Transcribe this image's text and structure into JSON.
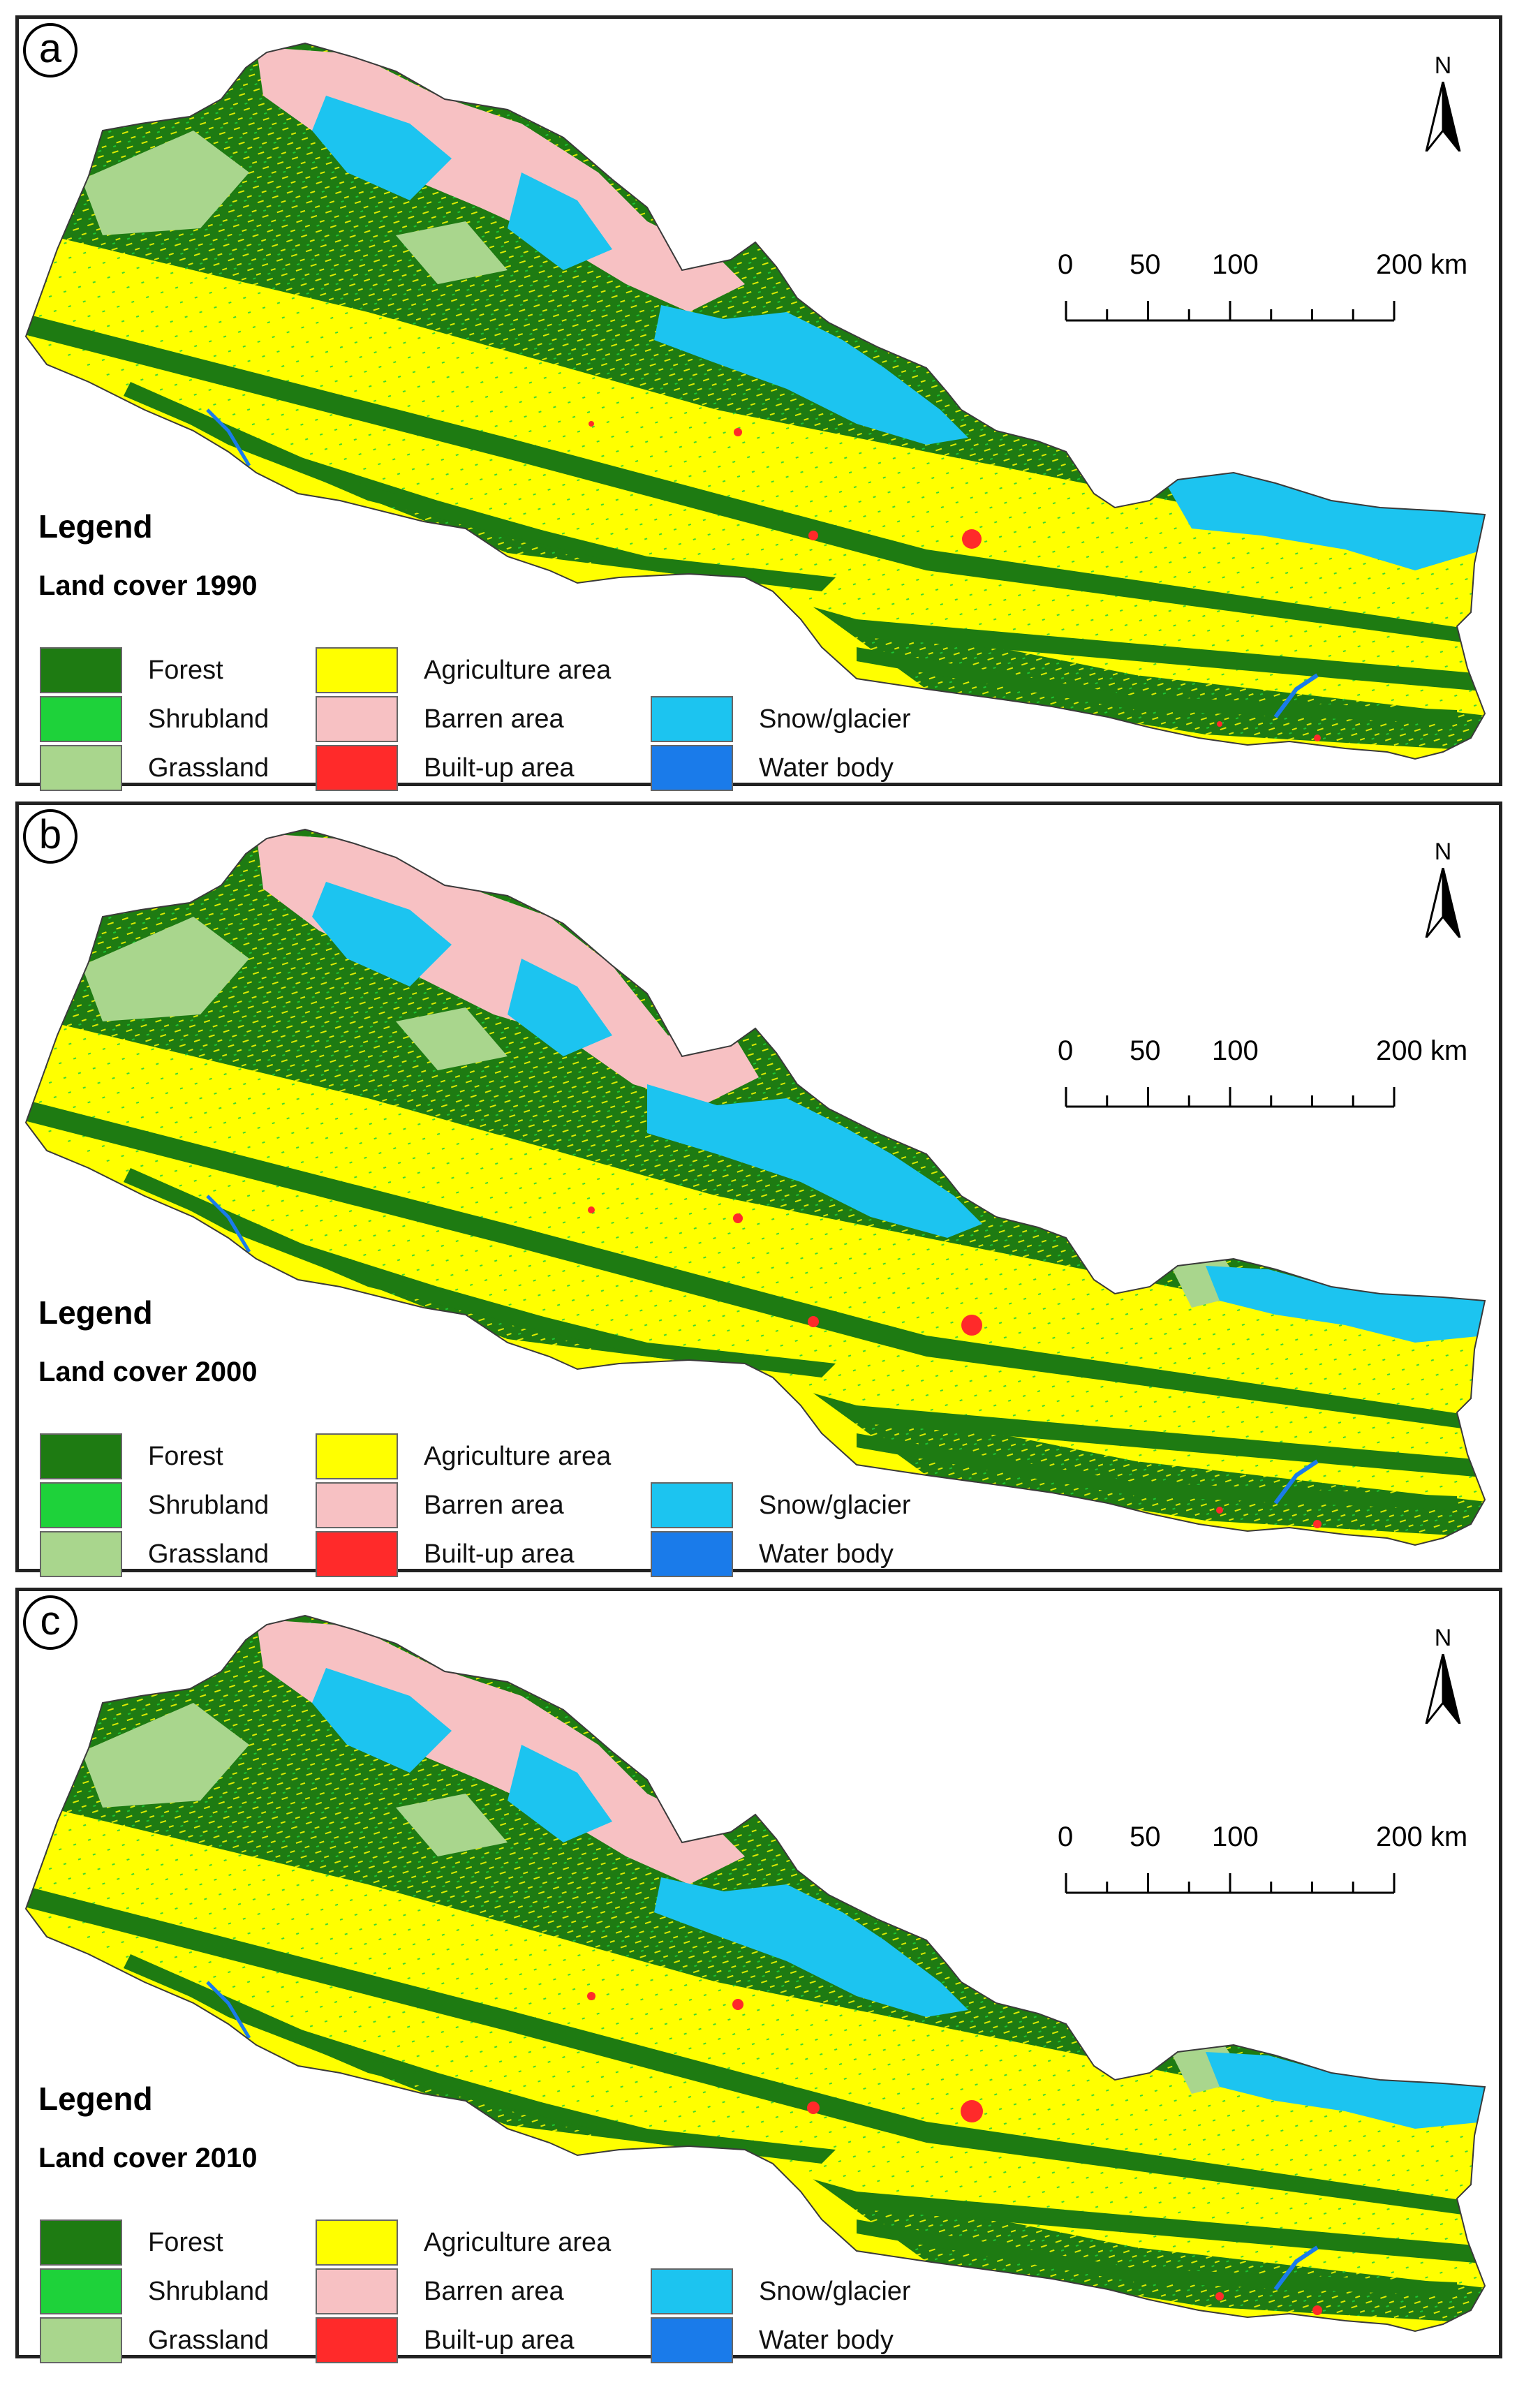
{
  "panels": [
    {
      "label": "a",
      "legend_title": "Legend",
      "subtitle": "Land cover 1990"
    },
    {
      "label": "b",
      "legend_title": "Legend",
      "subtitle": "Land cover 2000"
    },
    {
      "label": "c",
      "legend_title": "Legend",
      "subtitle": "Land cover 2010"
    }
  ],
  "north_label": "N",
  "scale": {
    "ticks": [
      "0",
      "50",
      "100",
      "200 km"
    ]
  },
  "legend_items": [
    {
      "label": "Forest",
      "color": "#1e7b12"
    },
    {
      "label": "Shrubland",
      "color": "#1ed23a"
    },
    {
      "label": "Grassland",
      "color": "#a9d68d"
    },
    {
      "label": "Agriculture area",
      "color": "#ffff00"
    },
    {
      "label": "Barren area",
      "color": "#f7c1c3"
    },
    {
      "label": "Built-up area",
      "color": "#ff2a2a"
    },
    {
      "label": "Snow/glacier",
      "color": "#1cc4f0"
    },
    {
      "label": "Water body",
      "color": "#1a7bea"
    }
  ]
}
